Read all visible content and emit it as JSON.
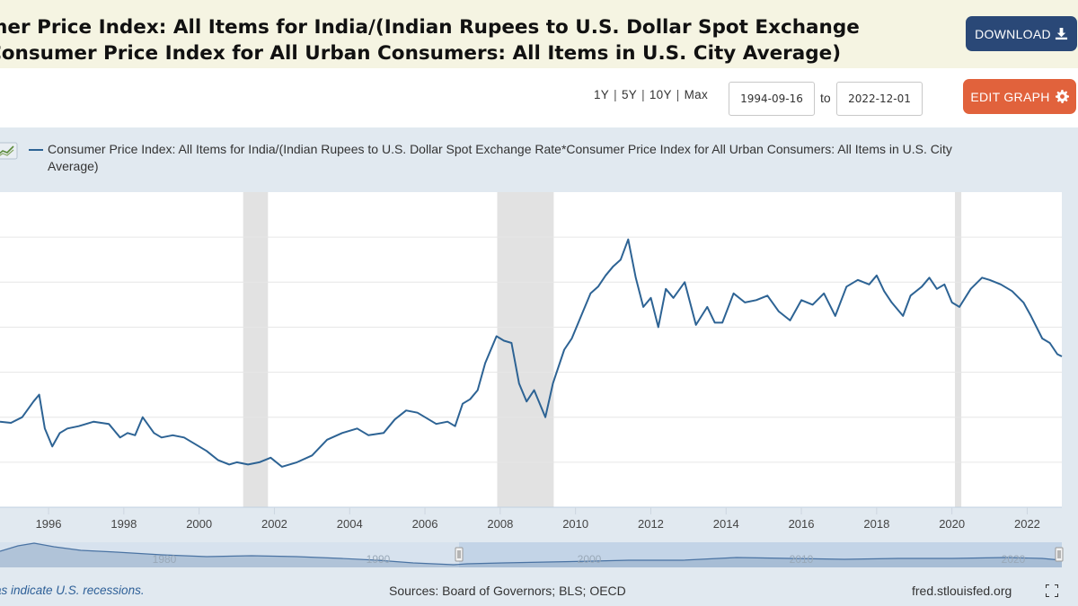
{
  "header": {
    "title_line1": "mer Price Index: All Items for India/(Indian Rupees to U.S. Dollar Spot Exchange",
    "title_line2": "Consumer Price Index for All Urban Consumers: All Items in U.S. City Average)",
    "download_label": "DOWNLOAD",
    "download_icon": "download-icon"
  },
  "controls": {
    "ranges": [
      "1Y",
      "5Y",
      "10Y",
      "Max"
    ],
    "date_start": "1994-09-16",
    "to_label": "to",
    "date_end": "2022-12-01",
    "edit_label": "EDIT GRAPH",
    "edit_icon": "gear-icon"
  },
  "legend": {
    "label": "Consumer Price Index: All Items for India/(Indian Rupees to U.S. Dollar Spot Exchange Rate*Consumer Price Index for All Urban Consumers: All Items in U.S. City Average)"
  },
  "navigator": {
    "ticks": [
      "1980",
      "1990",
      "2000",
      "2010",
      "2020"
    ]
  },
  "footer": {
    "recession_note": "as indicate U.S. recessions.",
    "sources": "Sources: Board of Governors; BLS; OECD",
    "site": "fred.stlouisfed.org"
  },
  "colors": {
    "line": "#2d6394",
    "recession": "#e2e2e2",
    "download_button": "#2a4877",
    "edit_button": "#e1623c",
    "title_bar": "#f5f4e2",
    "panel": "#e1e9f0"
  },
  "chart_data": {
    "type": "line",
    "title": "",
    "xlabel": "",
    "ylabel": "",
    "x_range": [
      1994.71,
      2022.92
    ],
    "x_ticks": [
      "1996",
      "1998",
      "2000",
      "2002",
      "2004",
      "2006",
      "2008",
      "2010",
      "2012",
      "2014",
      "2016",
      "2018",
      "2020",
      "2022"
    ],
    "y_ticks_shown": false,
    "grid": true,
    "legend_position": "top-left",
    "recessions": [
      [
        2001.17,
        2001.83
      ],
      [
        2007.92,
        2009.42
      ],
      [
        2020.08,
        2020.25
      ]
    ],
    "series": [
      {
        "name": "Consumer Price Index: All Items for India/(Indian Rupees to U.S. Dollar Spot Exchange Rate*Consumer Price Index for All Urban Consumers: All Items in U.S. City Average)",
        "x": [
          1994.71,
          1995.0,
          1995.3,
          1995.6,
          1995.75,
          1995.9,
          1996.1,
          1996.3,
          1996.5,
          1996.8,
          1997.2,
          1997.6,
          1997.9,
          1998.1,
          1998.3,
          1998.5,
          1998.8,
          1999.0,
          1999.3,
          1999.6,
          1999.9,
          2000.2,
          2000.5,
          2000.8,
          2001.0,
          2001.3,
          2001.6,
          2001.9,
          2002.2,
          2002.4,
          2002.6,
          2003.0,
          2003.4,
          2003.8,
          2004.2,
          2004.5,
          2004.9,
          2005.2,
          2005.5,
          2005.8,
          2006.0,
          2006.3,
          2006.6,
          2006.8,
          2007.0,
          2007.2,
          2007.4,
          2007.6,
          2007.9,
          2008.1,
          2008.3,
          2008.5,
          2008.7,
          2008.9,
          2009.2,
          2009.4,
          2009.7,
          2009.9,
          2010.2,
          2010.4,
          2010.6,
          2010.8,
          2011.0,
          2011.2,
          2011.4,
          2011.6,
          2011.8,
          2012.0,
          2012.2,
          2012.4,
          2012.6,
          2012.9,
          2013.2,
          2013.5,
          2013.7,
          2013.9,
          2014.2,
          2014.5,
          2014.8,
          2015.1,
          2015.4,
          2015.7,
          2016.0,
          2016.3,
          2016.6,
          2016.9,
          2017.2,
          2017.5,
          2017.8,
          2018.0,
          2018.2,
          2018.4,
          2018.7,
          2018.9,
          2019.2,
          2019.4,
          2019.6,
          2019.8,
          2020.0,
          2020.2,
          2020.5,
          2020.8,
          2021.0,
          2021.3,
          2021.6,
          2021.9,
          2022.1,
          2022.4,
          2022.6,
          2022.8,
          2022.92
        ],
        "values": [
          38,
          37.5,
          40,
          47,
          50,
          35,
          27,
          33,
          35,
          36,
          38,
          37,
          31,
          33,
          32,
          40,
          33,
          31,
          32,
          31,
          28,
          25,
          21,
          19,
          20,
          19,
          20,
          22,
          18,
          19,
          20,
          23,
          30,
          33,
          35,
          32,
          33,
          39,
          43,
          42,
          40,
          37,
          38,
          36,
          46,
          48,
          52,
          64,
          76,
          74,
          73,
          55,
          47,
          52,
          40,
          55,
          70,
          75,
          87,
          95,
          98,
          103,
          107,
          110,
          119,
          102,
          89,
          93,
          80,
          97,
          93,
          100,
          81,
          89,
          82,
          82,
          95,
          91,
          92,
          94,
          87,
          83,
          92,
          90,
          95,
          85,
          98,
          101,
          99,
          103,
          96,
          91,
          85,
          94,
          98,
          102,
          97,
          99,
          91,
          89,
          97,
          102,
          101,
          99,
          96,
          91,
          85,
          75,
          73,
          68,
          67
        ]
      }
    ]
  }
}
